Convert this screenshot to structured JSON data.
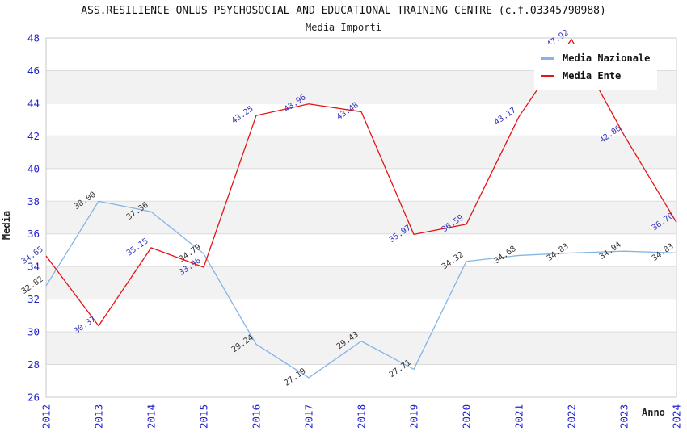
{
  "title": "ASS.RESILIENCE ONLUS PSYCHOSOCIAL AND EDUCATIONAL TRAINING CENTRE (c.f.03345790988)",
  "subtitle": "Media Importi",
  "legend": {
    "entries": [
      {
        "label": "Media Nazionale",
        "color": "#85B4E4"
      },
      {
        "label": "Media Ente",
        "color": "#E41414"
      }
    ]
  },
  "chart_data": {
    "type": "line",
    "x": [
      "2012",
      "2013",
      "2014",
      "2015",
      "2016",
      "2017",
      "2018",
      "2019",
      "2020",
      "2021",
      "2022",
      "2023",
      "2024"
    ],
    "series": [
      {
        "name": "Media Nazionale",
        "color": "#85B4E4",
        "label_color": "#333333",
        "values": [
          32.82,
          38.0,
          37.36,
          34.79,
          29.24,
          27.19,
          29.43,
          27.71,
          34.32,
          34.68,
          34.83,
          34.94,
          34.83
        ]
      },
      {
        "name": "Media Ente",
        "color": "#E41414",
        "label_color": "#3535BB",
        "values": [
          34.65,
          30.37,
          35.15,
          33.96,
          43.25,
          43.96,
          43.48,
          35.97,
          36.59,
          43.17,
          47.92,
          42.06,
          36.7
        ]
      }
    ],
    "xlabel": "Anno",
    "ylabel": "Media",
    "ylim": [
      26,
      48
    ],
    "ytick_step": 2,
    "yticks": [
      26,
      28,
      30,
      32,
      34,
      36,
      38,
      40,
      42,
      44,
      46,
      48
    ],
    "grid": "horizontal",
    "legend_position": "top-right",
    "tick_color": "#2222CC",
    "band_colors": [
      "#ffffff",
      "#F2F2F2"
    ],
    "gridline_color": "#DCDCDC",
    "border_color": "#C8C8C8"
  }
}
